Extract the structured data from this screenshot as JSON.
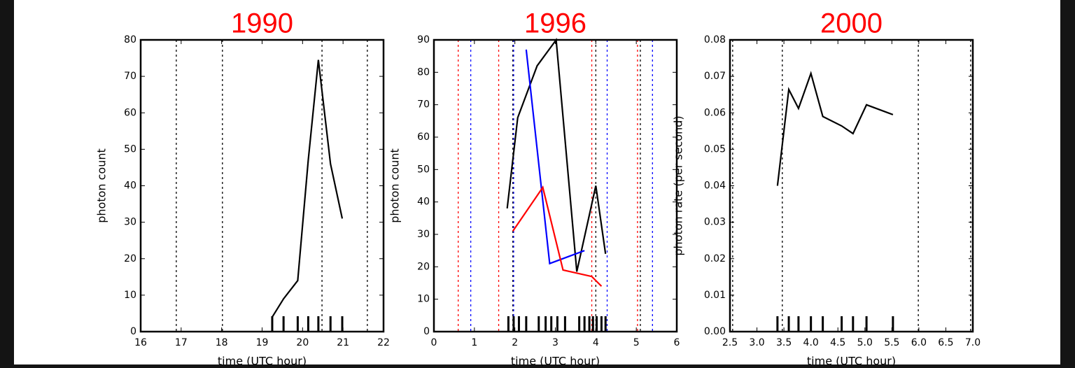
{
  "chart_data": [
    {
      "type": "line",
      "title": "1990",
      "xlabel": "time (UTC hour)",
      "ylabel": "photon count",
      "xlim": [
        16,
        22
      ],
      "xticks": [
        16,
        17,
        18,
        19,
        20,
        21,
        22
      ],
      "ylim": [
        0,
        80
      ],
      "yticks": [
        0,
        10,
        20,
        30,
        40,
        50,
        60,
        70,
        80
      ],
      "series": [
        {
          "color": "#000000",
          "x": [
            19.25,
            19.53,
            19.88,
            20.14,
            20.39,
            20.69,
            20.98
          ],
          "values": [
            4,
            9,
            14,
            47,
            74.5,
            46,
            31
          ]
        }
      ],
      "vlines": [
        {
          "x": 16.88,
          "color": "#000000"
        },
        {
          "x": 18.02,
          "color": "#000000"
        },
        {
          "x": 20.48,
          "color": "#000000"
        },
        {
          "x": 21.6,
          "color": "#000000"
        }
      ],
      "rug": [
        19.25,
        19.53,
        19.88,
        20.14,
        20.39,
        20.69,
        20.98
      ]
    },
    {
      "type": "line",
      "title": "1996",
      "xlabel": "time (UTC hour)",
      "ylabel": "photon count",
      "xlim": [
        0,
        6
      ],
      "xticks": [
        0,
        1,
        2,
        3,
        4,
        5,
        6
      ],
      "ylim": [
        0,
        90
      ],
      "yticks": [
        0,
        10,
        20,
        30,
        40,
        50,
        60,
        70,
        80,
        90
      ],
      "series": [
        {
          "color": "#000000",
          "x": [
            1.81,
            2.07,
            2.55,
            3.02,
            3.53,
            4.0,
            4.24
          ],
          "values": [
            38,
            66,
            82,
            90,
            18.5,
            45,
            24
          ]
        },
        {
          "color": "#0000ff",
          "x": [
            2.28,
            2.86,
            3.72
          ],
          "values": [
            87,
            21,
            25
          ]
        },
        {
          "color": "#ff0000",
          "x": [
            1.95,
            2.69,
            3.19,
            3.9,
            4.14
          ],
          "values": [
            31,
            44.5,
            19,
            17,
            14
          ]
        }
      ],
      "vlines": [
        {
          "x": 0.6,
          "color": "#ff0000"
        },
        {
          "x": 0.91,
          "color": "#0000ff"
        },
        {
          "x": 1.6,
          "color": "#ff0000"
        },
        {
          "x": 1.95,
          "color": "#000000"
        },
        {
          "x": 1.97,
          "color": "#0000ff"
        },
        {
          "x": 3.9,
          "color": "#ff0000"
        },
        {
          "x": 4.0,
          "color": "#000000"
        },
        {
          "x": 4.28,
          "color": "#0000ff"
        },
        {
          "x": 5.03,
          "color": "#ff0000"
        },
        {
          "x": 5.1,
          "color": "#000000"
        },
        {
          "x": 5.4,
          "color": "#0000ff"
        }
      ],
      "rug": [
        1.84,
        1.97,
        2.1,
        2.28,
        2.59,
        2.76,
        2.9,
        3.05,
        3.24,
        3.59,
        3.72,
        3.84,
        3.93,
        4.02,
        4.14,
        4.24
      ]
    },
    {
      "type": "line",
      "title": "2000",
      "xlabel": "time (UTC hour)",
      "ylabel": "photon rate (per second)",
      "xlim": [
        2.5,
        7.0
      ],
      "xticks": [
        2.5,
        {
          "value": 3,
          "label": "3.0"
        },
        3.5,
        {
          "value": 4,
          "label": "4.0"
        },
        4.5,
        {
          "value": 5,
          "label": "5.0"
        },
        5.5,
        {
          "value": 6,
          "label": "6.0"
        },
        6.5,
        {
          "value": 7,
          "label": "7.0"
        }
      ],
      "ylim": [
        0,
        0.08
      ],
      "yticks": [
        {
          "value": 0,
          "label": "0.00"
        },
        {
          "value": 0.01,
          "label": "0.01"
        },
        {
          "value": 0.02,
          "label": "0.02"
        },
        {
          "value": 0.03,
          "label": "0.03"
        },
        {
          "value": 0.04,
          "label": "0.04"
        },
        {
          "value": 0.05,
          "label": "0.05"
        },
        {
          "value": 0.06,
          "label": "0.06"
        },
        {
          "value": 0.07,
          "label": "0.07"
        },
        {
          "value": 0.08,
          "label": "0.08"
        }
      ],
      "series": [
        {
          "color": "#000000",
          "x": [
            3.38,
            3.59,
            3.77,
            4.0,
            4.22,
            4.57,
            4.78,
            5.03,
            5.52
          ],
          "values": [
            0.04,
            0.0664,
            0.0612,
            0.0708,
            0.059,
            0.0564,
            0.0543,
            0.0622,
            0.0595
          ]
        }
      ],
      "vlines": [
        {
          "x": 2.55,
          "color": "#000000"
        },
        {
          "x": 3.47,
          "color": "#000000"
        },
        {
          "x": 5.99,
          "color": "#000000"
        },
        {
          "x": 6.96,
          "color": "#000000"
        }
      ],
      "rug": [
        3.38,
        3.59,
        3.77,
        4.0,
        4.22,
        4.57,
        4.78,
        5.03,
        5.52
      ]
    }
  ]
}
